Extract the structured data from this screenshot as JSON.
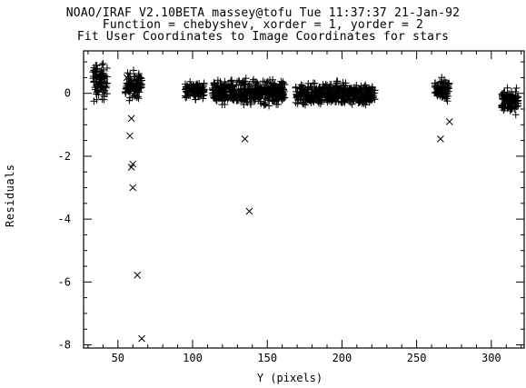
{
  "title_lines": [
    "NOAO/IRAF V2.10BETA massey@tofu Tue 11:37:37 21-Jan-92",
    "Function = chebyshev, xorder = 1, yorder = 2",
    "Fit User Coordinates to Image Coordinates for stars"
  ],
  "chart_data": {
    "type": "scatter",
    "xlabel": "Y (pixels)",
    "ylabel": "Residuals",
    "xlim": [
      27,
      322
    ],
    "ylim": [
      -8.1,
      1.35
    ],
    "xticks": [
      50,
      100,
      150,
      200,
      250,
      300
    ],
    "yticks": [
      0,
      -2,
      -4,
      -6,
      -8
    ],
    "grid": false,
    "series": [
      {
        "marker": "plus",
        "clusters": [
          {
            "x": [
              33,
              43
            ],
            "y": [
              -0.45,
              1.15
            ]
          },
          {
            "x": [
              55,
              66
            ],
            "y": [
              -0.35,
              0.85
            ]
          },
          {
            "x": [
              95,
              108
            ],
            "y": [
              -0.25,
              0.45
            ]
          },
          {
            "x": [
              113,
              162
            ],
            "y": [
              -0.5,
              0.55
            ]
          },
          {
            "x": [
              169,
              222
            ],
            "y": [
              -0.5,
              0.45
            ]
          },
          {
            "x": [
              262,
              272
            ],
            "y": [
              -0.35,
              0.6
            ]
          },
          {
            "x": [
              307,
              318
            ],
            "y": [
              -0.75,
              0.3
            ]
          }
        ]
      },
      {
        "marker": "cross",
        "points": [
          {
            "x": 56,
            "y": 0.5
          },
          {
            "x": 59,
            "y": -0.8
          },
          {
            "x": 58,
            "y": -1.35
          },
          {
            "x": 60,
            "y": -2.25
          },
          {
            "x": 59,
            "y": -2.35
          },
          {
            "x": 60,
            "y": -3.0
          },
          {
            "x": 63,
            "y": -5.78
          },
          {
            "x": 66,
            "y": -7.8
          },
          {
            "x": 135,
            "y": -1.45
          },
          {
            "x": 138,
            "y": -3.75
          },
          {
            "x": 266,
            "y": -1.45
          },
          {
            "x": 272,
            "y": -0.9
          }
        ]
      }
    ]
  }
}
